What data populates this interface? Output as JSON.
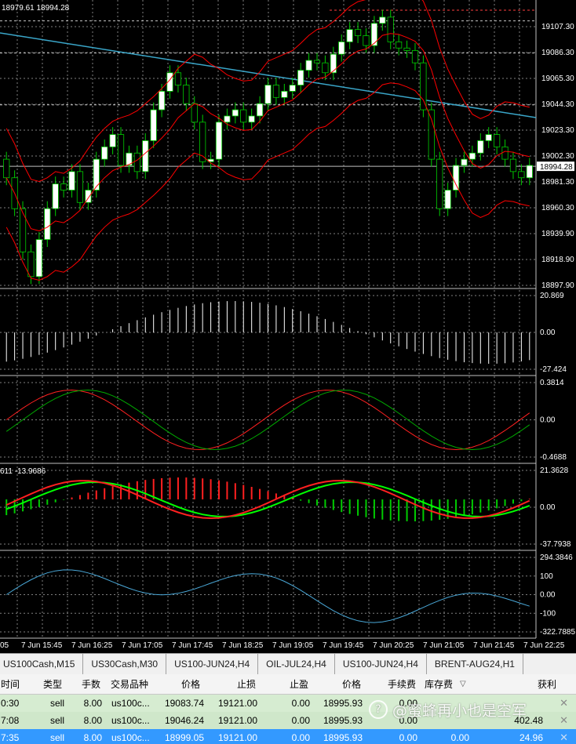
{
  "chart": {
    "ohlc_readout": "18979.61 18994.28",
    "macd_values": "611 -13.9686",
    "current_price_label": "18994.28",
    "price_axis": [
      "19107.30",
      "19086.30",
      "19065.30",
      "19044.30",
      "19023.30",
      "19002.30",
      "18981.30",
      "18960.30",
      "18939.90",
      "18918.90",
      "18897.90"
    ],
    "osc1_axis": [
      "20.869",
      "0.00",
      "-27.424"
    ],
    "osc2_axis": [
      "0.3814",
      "0.00",
      "-0.4688"
    ],
    "osc3_axis": [
      "21.3628",
      "0.00",
      "-37.7938"
    ],
    "osc4_axis": [
      "294.3846",
      "100",
      "0.00",
      "-100",
      "-322.7885"
    ],
    "time_axis": [
      "05",
      "7 Jun 15:45",
      "7 Jun 16:25",
      "7 Jun 17:05",
      "7 Jun 17:45",
      "7 Jun 18:25",
      "7 Jun 19:05",
      "7 Jun 19:45",
      "7 Jun 20:25",
      "7 Jun 21:05",
      "7 Jun 21:45",
      "7 Jun 22:25"
    ],
    "colors": {
      "background": "#000000",
      "grid": "#7f7f7f",
      "bull": "#ffffff",
      "bear": "#000000",
      "candle_outline": "#00cc00",
      "bollinger": "#ff0000",
      "trendline": "#3aa6c9",
      "hist_green": "#00cc00",
      "hist_red": "#ff2020",
      "signal_green": "#00ff00",
      "cci": "#4aa8d8"
    }
  },
  "tabs": [
    "US100Cash,M15",
    "US30Cash,M30",
    "US100-JUN24,H4",
    "OIL-JUL24,H4",
    "US100-JUN24,H4",
    "BRENT-AUG24,H1"
  ],
  "table": {
    "headers": {
      "time": "时间",
      "type": "类型",
      "lots": "手数",
      "symbol": "交易品种",
      "price": "价格",
      "sl": "止损",
      "tp": "止盈",
      "price2": "价格",
      "commission": "手续费",
      "swap": "库存费",
      "sort_mark": "▽",
      "profit": "获利"
    },
    "rows": [
      {
        "time": "0:30",
        "type": "sell",
        "lots": "8.00",
        "symbol": "us100c...",
        "price": "19083.74",
        "sl": "19121.00",
        "tp": "0.00",
        "price2": "18995.93",
        "commission": "0.00",
        "swap": "",
        "profit": ""
      },
      {
        "time": "7:08",
        "type": "sell",
        "lots": "8.00",
        "symbol": "us100c...",
        "price": "19046.24",
        "sl": "19121.00",
        "tp": "0.00",
        "price2": "18995.93",
        "commission": "0.00",
        "swap": "",
        "profit": "402.48"
      },
      {
        "time": "7:35",
        "type": "sell",
        "lots": "8.00",
        "symbol": "us100c...",
        "price": "18999.05",
        "sl": "19121.00",
        "tp": "0.00",
        "price2": "18995.93",
        "commission": "0.00",
        "swap": "0.00",
        "profit": "24.96"
      }
    ],
    "close_glyph": "✕"
  },
  "watermark": "@蜜蜂再小也是空军"
}
